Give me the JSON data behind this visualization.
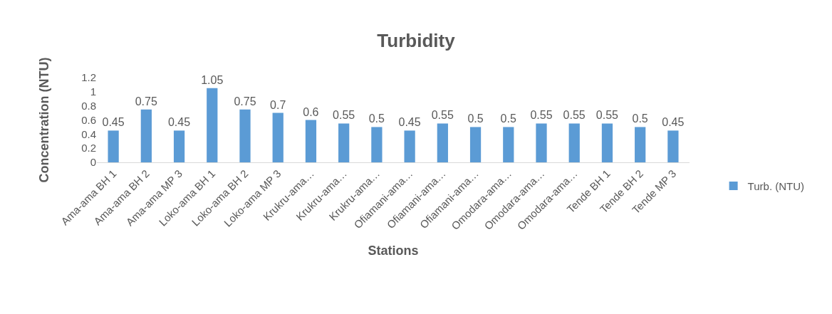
{
  "chart_data": {
    "type": "bar",
    "title": "Turbidity",
    "xlabel": "Stations",
    "ylabel": "Concentration (NTU)",
    "categories": [
      "Ama-ama BH 1",
      "Ama-ama BH 2",
      "Ama-ama MP 3",
      "Loko-ama BH 1",
      "Loko-ama BH 2",
      "Loko-ama MP 3",
      "Krukru-ama…",
      "Krukru-ama…",
      "Krukru-ama…",
      "Ofiamani-ama…",
      "Ofiamani-ama…",
      "Ofiamani-ama…",
      "Omodara-ama…",
      "Omodara-ama…",
      "Omodara-ama…",
      "Tende BH 1",
      "Tende BH 2",
      "Tende MP 3"
    ],
    "series": [
      {
        "name": "Turb. (NTU)",
        "color": "#5b9bd5",
        "values": [
          0.45,
          0.75,
          0.45,
          1.05,
          0.75,
          0.7,
          0.6,
          0.55,
          0.5,
          0.45,
          0.55,
          0.5,
          0.5,
          0.55,
          0.55,
          0.55,
          0.5,
          0.45
        ]
      }
    ],
    "ylim": [
      0,
      1.2
    ],
    "yticks": [
      0,
      0.2,
      0.4,
      0.6,
      0.8,
      1,
      1.2
    ],
    "data_labels": true,
    "grid": false,
    "legend": "right"
  }
}
